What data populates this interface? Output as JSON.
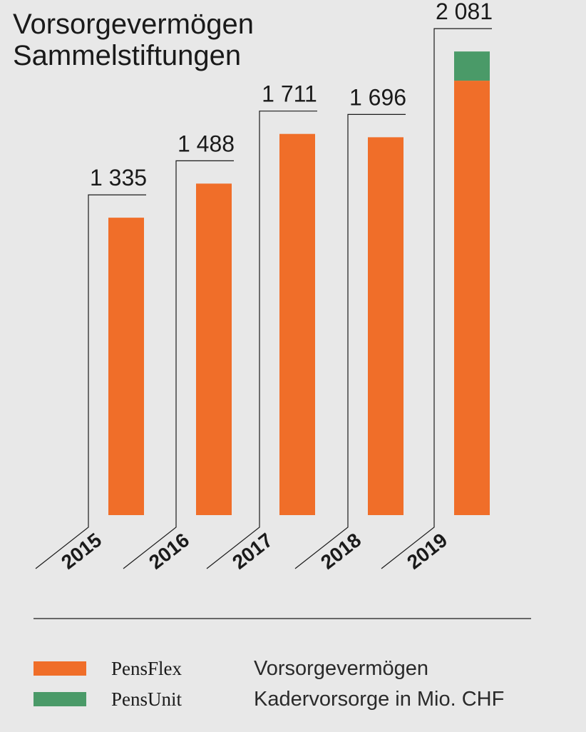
{
  "chart_data": {
    "type": "bar",
    "title": [
      "Vorsorgevermögen",
      "Sammelstiftungen"
    ],
    "categories": [
      "2015",
      "2016",
      "2017",
      "2018",
      "2019"
    ],
    "totals_labels": [
      "1 335",
      "1 488",
      "1 711",
      "1 696",
      "2 081"
    ],
    "series": [
      {
        "name": "PensFlex",
        "description": "Vorsorgevermögen",
        "color": "#f06e29",
        "values": [
          1335,
          1488,
          1711,
          1696,
          1950
        ]
      },
      {
        "name": "PensUnit",
        "description": "Kadervorsorge in Mio. CHF",
        "color": "#4a9a68",
        "values": [
          0,
          0,
          0,
          0,
          131
        ]
      }
    ],
    "ylim": [
      0,
      2200
    ],
    "xlabel": "",
    "ylabel": "",
    "legend_position": "bottom-left"
  },
  "colors": {
    "background": "#e8e8e8",
    "text": "#1a1a1a",
    "leader_line": "#1a1a1a"
  }
}
